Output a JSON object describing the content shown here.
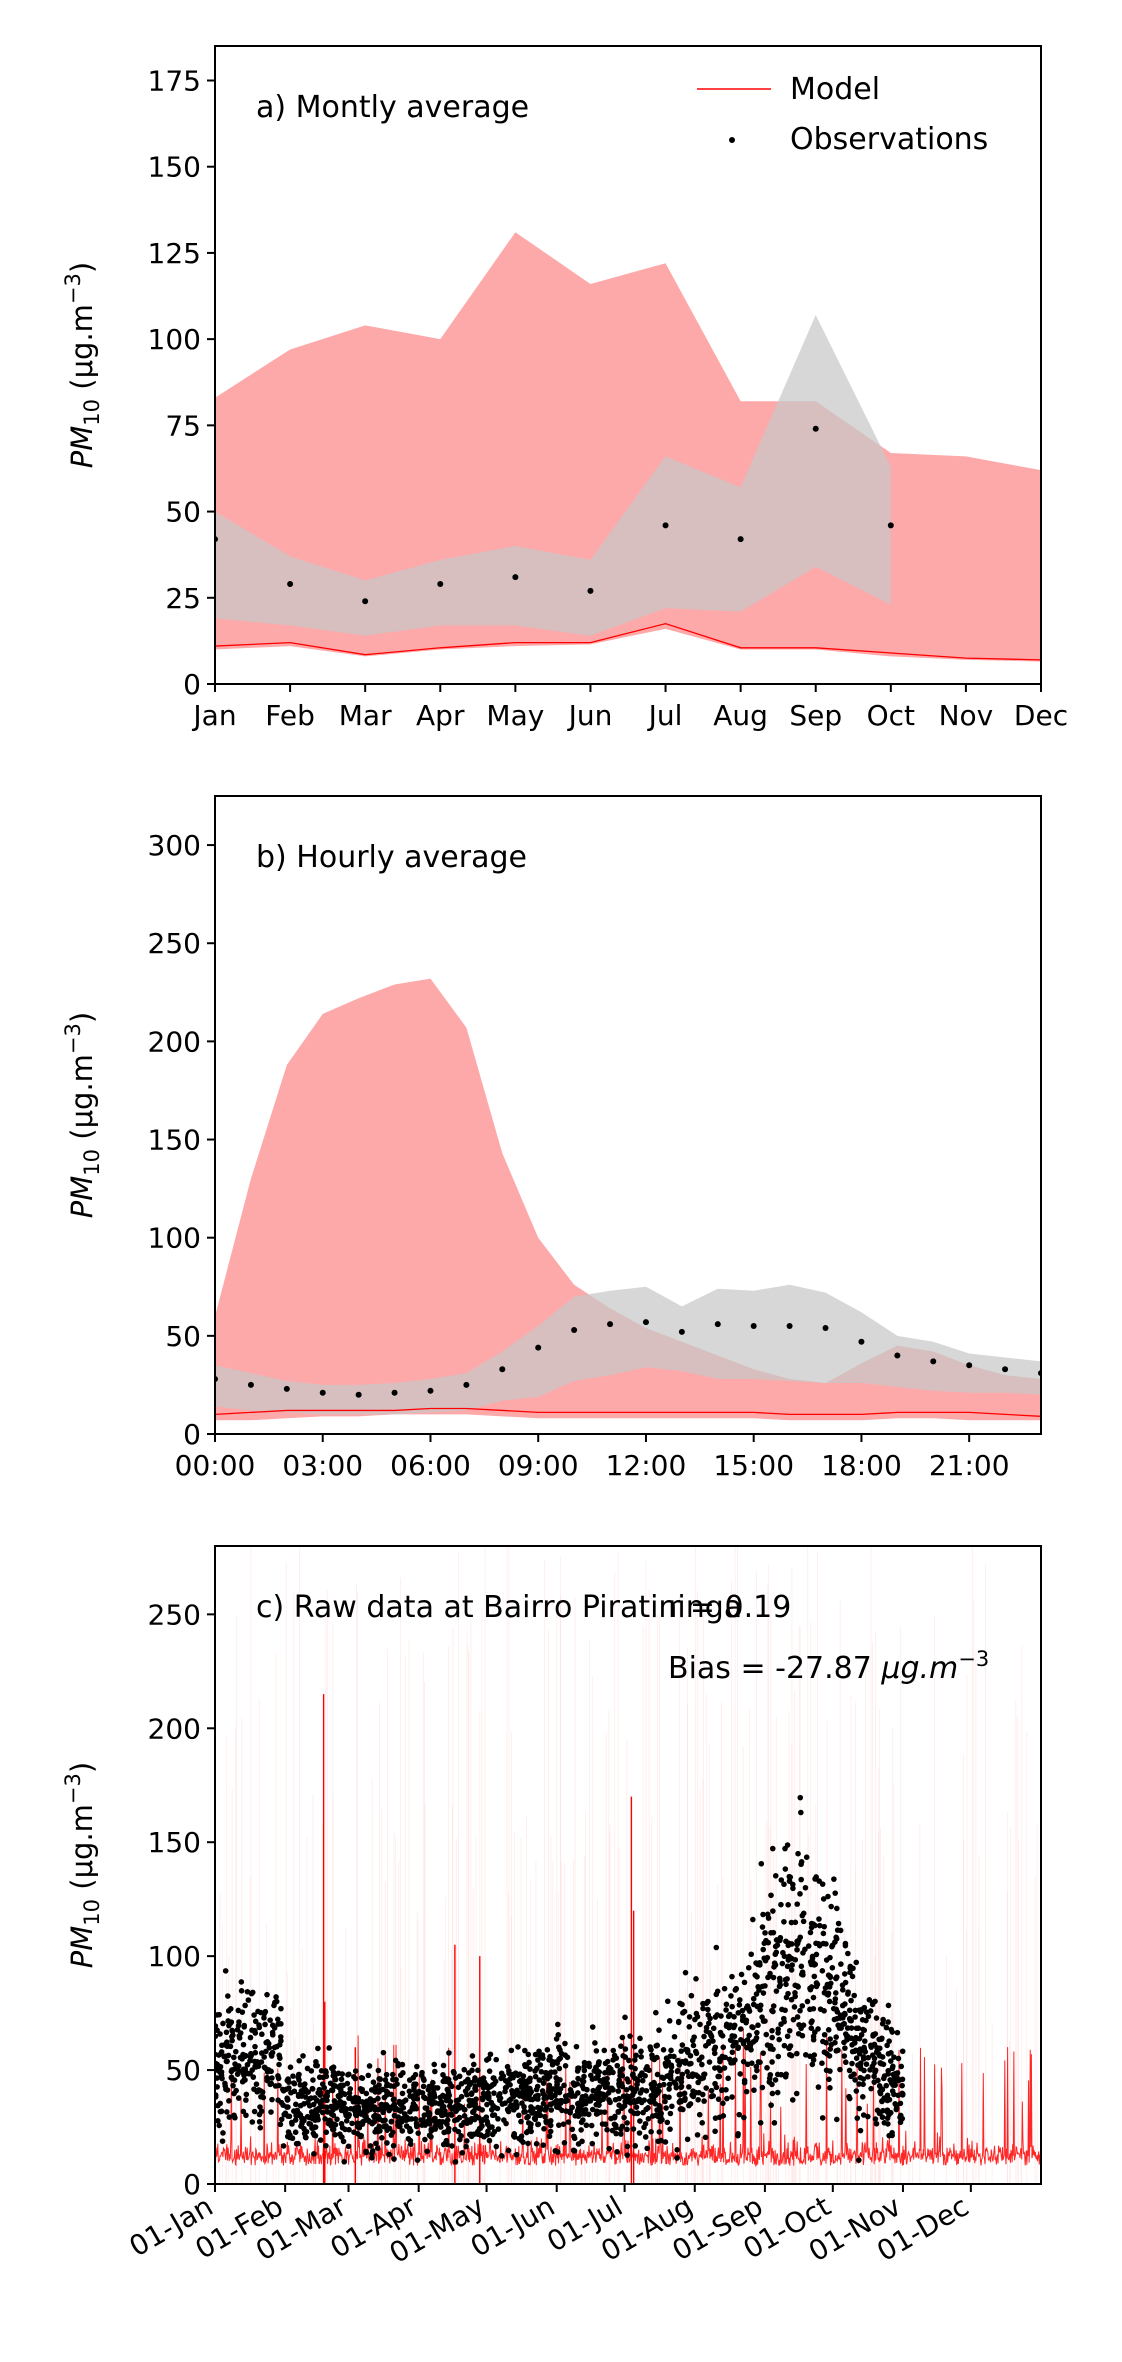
{
  "legend": {
    "model": "Model",
    "observations": "Observations"
  },
  "colors": {
    "model_band": "#fda9aa",
    "obs_band": "#c8c8c8",
    "model_line": "#ff0000",
    "obs_point": "#000000"
  },
  "chart_data": [
    {
      "type": "area",
      "title": "a) Montly average",
      "ylabel_main": "PM",
      "ylabel_sub": "10",
      "ylabel_unit": " (μg.m",
      "ylabel_exp": "−3",
      "ylabel_close": ")",
      "x_type": "category",
      "categories": [
        "Jan",
        "Feb",
        "Mar",
        "Apr",
        "May",
        "Jun",
        "Jul",
        "Aug",
        "Sep",
        "Oct",
        "Nov",
        "Dec"
      ],
      "xtick_positions": [
        0,
        1,
        2,
        3,
        4,
        5,
        6,
        7,
        8,
        9,
        10,
        11
      ],
      "xtick_labels": [
        "Jan",
        "Feb",
        "Mar",
        "Apr",
        "May",
        "Jun",
        "Jul",
        "Aug",
        "Sep",
        "Oct",
        "Nov",
        "Dec"
      ],
      "xlim": [
        0,
        11
      ],
      "ylim": [
        0,
        185
      ],
      "yticks": [
        0,
        25,
        50,
        75,
        100,
        125,
        150,
        175
      ],
      "legend_position": "top-right",
      "model_band": {
        "lower": [
          10,
          11,
          8,
          10,
          11,
          11.5,
          16,
          10,
          10,
          8,
          7,
          6.5
        ],
        "upper": [
          83,
          97,
          104,
          100,
          131,
          116,
          122,
          82,
          82,
          67,
          66,
          62
        ]
      },
      "model_line": [
        11,
        12,
        8.5,
        10.5,
        12,
        12,
        17.5,
        10.5,
        10.5,
        9,
        7.5,
        7
      ],
      "obs_band": {
        "x": [
          0,
          1,
          2,
          3,
          4,
          5,
          6,
          7,
          8,
          9
        ],
        "lower": [
          19,
          17,
          14,
          17,
          17,
          14,
          22,
          21,
          34,
          23
        ],
        "upper": [
          50,
          37,
          30,
          36,
          40,
          36,
          66,
          57,
          107,
          63
        ]
      },
      "observations": {
        "x": [
          0,
          1,
          2,
          3,
          4,
          5,
          6,
          7,
          8,
          9
        ],
        "y": [
          42,
          29,
          24,
          29,
          31,
          27,
          46,
          42,
          74,
          46
        ]
      }
    },
    {
      "type": "area",
      "title": "b) Hourly average",
      "ylabel_main": "PM",
      "ylabel_sub": "10",
      "ylabel_unit": " (μg.m",
      "ylabel_exp": "−3",
      "ylabel_close": ")",
      "x_type": "hour",
      "xtick_positions": [
        0,
        3,
        6,
        9,
        12,
        15,
        18,
        21
      ],
      "xtick_labels": [
        "00:00",
        "03:00",
        "06:00",
        "09:00",
        "12:00",
        "15:00",
        "18:00",
        "21:00"
      ],
      "xlim": [
        0,
        23
      ],
      "ylim": [
        0,
        325
      ],
      "yticks": [
        0,
        50,
        100,
        150,
        200,
        250,
        300
      ],
      "model_band": {
        "lower": [
          7,
          7,
          8,
          9,
          9,
          10,
          10,
          10,
          9,
          8,
          8,
          8,
          8,
          8,
          8,
          8,
          7,
          7,
          7,
          8,
          8,
          7,
          7,
          7
        ],
        "upper": [
          60,
          130,
          188,
          214,
          222,
          229,
          232,
          207,
          143,
          100,
          76,
          64,
          54,
          47,
          40,
          33,
          28,
          26,
          36,
          45,
          42,
          35,
          30,
          28
        ]
      },
      "model_line": [
        10,
        11,
        12,
        12,
        12,
        12,
        13,
        13,
        12,
        11,
        11,
        11,
        11,
        11,
        11,
        11,
        10,
        10,
        10,
        11,
        11,
        11,
        10,
        9
      ],
      "obs_band": {
        "lower": [
          14,
          12,
          11,
          10,
          10,
          10,
          11,
          12,
          17,
          19,
          27,
          30,
          34,
          32,
          28,
          28,
          27,
          26,
          26,
          24,
          22,
          21,
          21,
          20
        ],
        "upper": [
          35,
          31,
          27,
          25,
          25,
          26,
          28,
          31,
          42,
          55,
          70,
          73,
          75,
          65,
          74,
          73,
          76,
          72,
          62,
          50,
          47,
          41,
          39,
          37
        ]
      },
      "observations": {
        "x": [
          0,
          1,
          2,
          3,
          4,
          5,
          6,
          7,
          8,
          9,
          10,
          11,
          12,
          13,
          14,
          15,
          16,
          17,
          18,
          19,
          20,
          21,
          22,
          23
        ],
        "y": [
          28,
          25,
          23,
          21,
          20,
          21,
          22,
          25,
          33,
          44,
          53,
          56,
          57,
          52,
          56,
          55,
          55,
          54,
          47,
          40,
          37,
          35,
          33,
          31
        ]
      }
    },
    {
      "type": "line",
      "title": "c) Raw data at Bairro Piratininga",
      "stat_r": "r = 0.19",
      "stat_bias": "Bias = -27.87 ",
      "stat_bias_unit": "μg.m",
      "stat_bias_exp": "−3",
      "ylabel_main": "PM",
      "ylabel_sub": "10",
      "ylabel_unit": " (μg.m",
      "ylabel_exp": "−3",
      "ylabel_close": ")",
      "x_type": "day_of_year",
      "xtick_positions": [
        0,
        31,
        59,
        90,
        120,
        151,
        181,
        212,
        243,
        273,
        304,
        334
      ],
      "xtick_labels": [
        "01-Jan",
        "01-Feb",
        "01-Mar",
        "01-Apr",
        "01-May",
        "01-Jun",
        "01-Jul",
        "01-Aug",
        "01-Sep",
        "01-Oct",
        "01-Nov",
        "01-Dec"
      ],
      "xlim": [
        0,
        365
      ],
      "ylim": [
        0,
        280
      ],
      "yticks": [
        0,
        50,
        100,
        150,
        200,
        250
      ],
      "model_spikes": [
        {
          "day": 48,
          "value": 215
        },
        {
          "day": 184,
          "value": 170
        },
        {
          "day": 185,
          "value": 120
        },
        {
          "day": 106,
          "value": 105
        },
        {
          "day": 117,
          "value": 100
        },
        {
          "day": 48.5,
          "value": 80
        },
        {
          "day": 62,
          "value": 60
        }
      ],
      "observations_extent_days": [
        0,
        304
      ],
      "observations_note": "hourly observations, dense scatter with seasonal maximum in September"
    }
  ]
}
